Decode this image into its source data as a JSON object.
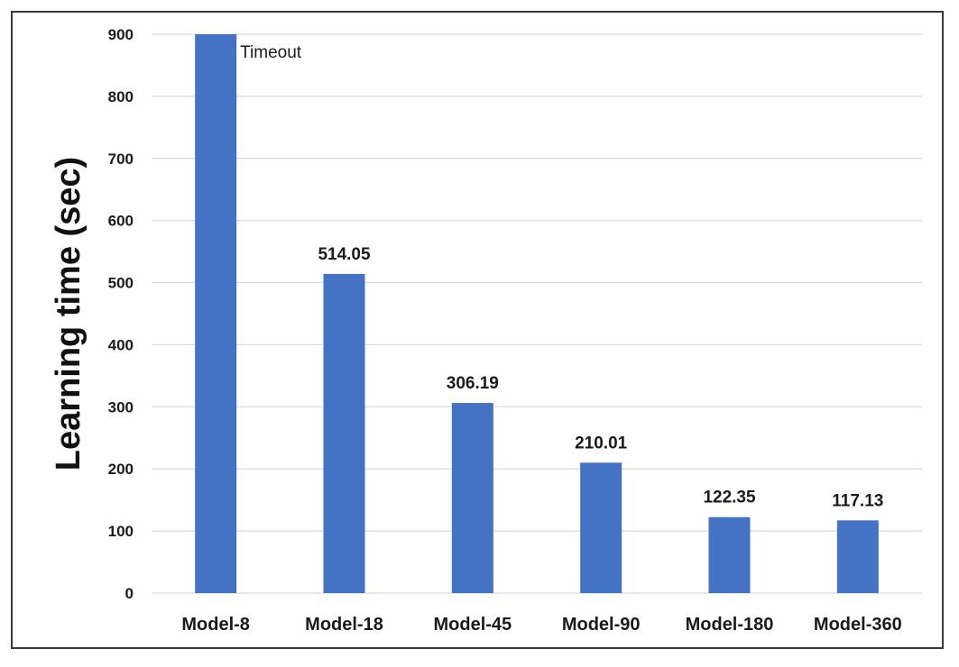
{
  "chart_data": {
    "type": "bar",
    "categories": [
      "Model-8",
      "Model-18",
      "Model-45",
      "Model-90",
      "Model-180",
      "Model-360"
    ],
    "values": [
      900,
      514.05,
      306.19,
      210.01,
      122.35,
      117.13
    ],
    "data_labels": [
      "Timeout",
      "514.05",
      "306.19",
      "210.01",
      "122.35",
      "117.13"
    ],
    "ylabel": "Learning time (sec)",
    "xlabel": "",
    "ylim": [
      0,
      900
    ],
    "yticks": [
      0,
      100,
      200,
      300,
      400,
      500,
      600,
      700,
      800,
      900
    ],
    "grid": true,
    "bar_color": "#4472c4",
    "grid_color": "#d9d9d9"
  }
}
